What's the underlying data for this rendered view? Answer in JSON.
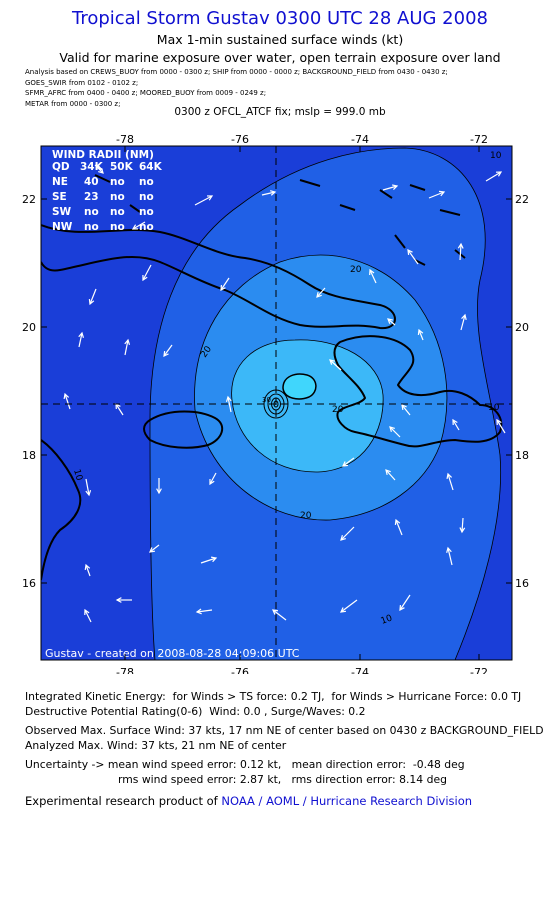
{
  "header": {
    "title": "Tropical Storm Gustav 0300 UTC 28 AUG 2008",
    "subtitle1": "Max 1-min sustained surface winds (kt)",
    "subtitle2": "Valid for marine exposure over water, open terrain exposure over land"
  },
  "sources": [
    "Analysis based on  CREWS_BUOY from 0000 - 0300 z;  SHIP from 0000 - 0000 z;  BACKGROUND_FIELD from 0430 - 0430 z;",
    "GOES_SWIR from 0102 - 0102 z;",
    "SFMR_AFRC from 0400 - 0400 z;  MOORED_BUOY from 0009 - 0249 z;",
    "METAR from 0000 - 0300 z;"
  ],
  "fix_line": "0300 z OFCL_ATCF fix; mslp = 999.0 mb",
  "map": {
    "lon_ticks": [
      "-78",
      "-76",
      "-74",
      "-72"
    ],
    "lat_ticks": [
      "22",
      "20",
      "18",
      "16"
    ],
    "center": {
      "lon": -75.5,
      "lat": 18.8
    },
    "contour_labels": [
      "20",
      "20",
      "20",
      "20",
      "10",
      "10",
      "10",
      "30",
      "10"
    ],
    "credit": "Gustav - created on 2008-08-28 04:09:06 UTC",
    "colors": {
      "ocean": "#1a3ed8",
      "band10": "#2060e6",
      "band20": "#2b8cf0",
      "band30": "#3cb8f8",
      "core": "#40d6fc",
      "land": "#000000",
      "arrows": "#ffffff"
    },
    "wind_radii": {
      "title": "WIND RADII (NM)",
      "header": [
        "QD",
        "34K",
        "50K",
        "64K"
      ],
      "rows": [
        [
          "NE",
          "40",
          "no",
          "no"
        ],
        [
          "SE",
          "23",
          "no",
          "no"
        ],
        [
          "SW",
          "no",
          "no",
          "no"
        ],
        [
          "NW",
          "no",
          "no",
          "no"
        ]
      ]
    }
  },
  "footer": {
    "ike": "Integrated Kinetic Energy:  for Winds > TS force: 0.2 TJ,  for Winds > Hurricane Force: 0.0 TJ",
    "dpr": "Destructive Potential Rating(0-6)  Wind: 0.0 , Surge/Waves: 0.2",
    "obs_max": "Observed Max. Surface Wind: 37 kts, 17 nm NE of center based on 0430 z BACKGROUND_FIELD",
    "an_max": "Analyzed Max. Wind: 37 kts, 21 nm NE of center",
    "unc1": "Uncertainty -> mean wind speed error: 0.12 kt,   mean direction error:  -0.48 deg",
    "unc2": "rms wind speed error: 2.87 kt,   rms direction error: 8.14 deg",
    "research_prefix": "Experimental research product of ",
    "research_link": "NOAA / AOML / Hurricane Research Division"
  }
}
